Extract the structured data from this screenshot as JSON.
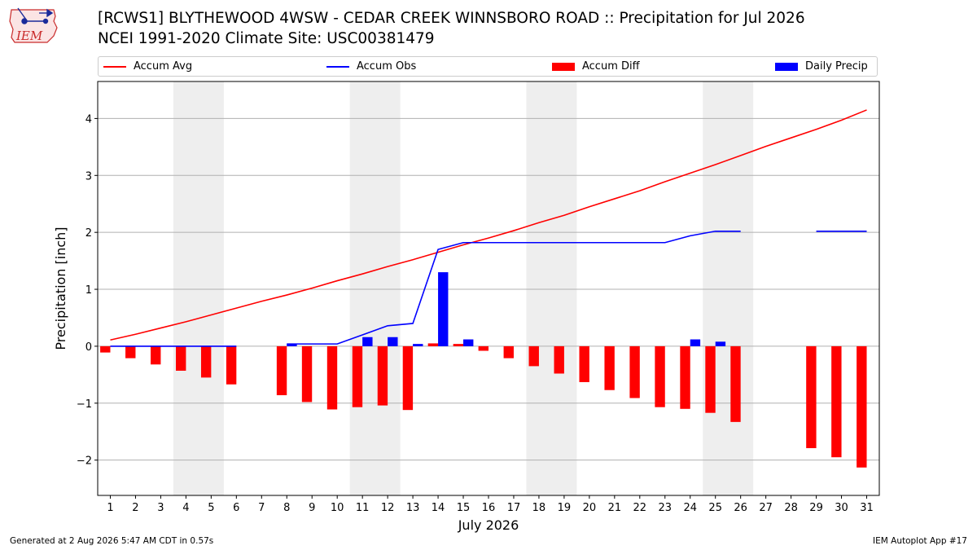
{
  "header": {
    "title_line1": "[RCWS1] BLYTHEWOOD 4WSW - CEDAR CREEK WINNSBORO ROAD :: Precipitation for Jul 2026",
    "title_line2": "NCEI 1991-2020 Climate Site: USC00381479",
    "logo_text": "IEM"
  },
  "footer": {
    "generated": "Generated at 2 Aug 2026 5:47 AM CDT in 0.57s",
    "app": "IEM Autoplot App #17"
  },
  "colors": {
    "avg": "#ff0000",
    "obs": "#0000ff",
    "diff": "#ff0000",
    "daily": "#0000ff",
    "weekend": "#eeeeee",
    "grid": "#b0b0b0"
  },
  "chart_data": {
    "type": "bar",
    "xlabel": "July 2026",
    "ylabel": "Precipitation [inch]",
    "xlim": [
      0.5,
      31.5
    ],
    "ylim": [
      -2.62,
      4.65
    ],
    "yticks": [
      -2,
      -1,
      0,
      1,
      2,
      3,
      4
    ],
    "ytick_labels": [
      "−2",
      "−1",
      "0",
      "1",
      "2",
      "3",
      "4"
    ],
    "grid": "horizontal",
    "legend_placement": "top",
    "days": [
      1,
      2,
      3,
      4,
      5,
      6,
      7,
      8,
      9,
      10,
      11,
      12,
      13,
      14,
      15,
      16,
      17,
      18,
      19,
      20,
      21,
      22,
      23,
      24,
      25,
      26,
      27,
      28,
      29,
      30,
      31
    ],
    "weekend_spans": [
      [
        3.5,
        5.5
      ],
      [
        10.5,
        12.5
      ],
      [
        17.5,
        19.5
      ],
      [
        24.5,
        26.5
      ]
    ],
    "series": [
      {
        "name": "Accum Avg",
        "kind": "line",
        "values": [
          0.11,
          0.21,
          0.32,
          0.43,
          0.55,
          0.67,
          0.79,
          0.9,
          1.02,
          1.15,
          1.27,
          1.4,
          1.52,
          1.65,
          1.78,
          1.9,
          2.03,
          2.17,
          2.3,
          2.45,
          2.59,
          2.73,
          2.89,
          3.04,
          3.19,
          3.35,
          3.51,
          3.66,
          3.81,
          3.97,
          4.15
        ]
      },
      {
        "name": "Accum Obs",
        "kind": "line",
        "values": [
          0.0,
          0.0,
          0.0,
          0.0,
          0.0,
          0.0,
          null,
          0.04,
          0.04,
          0.04,
          0.2,
          0.36,
          0.4,
          1.7,
          1.82,
          1.82,
          1.82,
          1.82,
          1.82,
          1.82,
          1.82,
          1.82,
          1.82,
          1.94,
          2.02,
          2.02,
          null,
          null,
          2.02,
          2.02,
          2.02
        ]
      },
      {
        "name": "Accum Diff",
        "kind": "bar",
        "values": [
          -0.11,
          -0.21,
          -0.32,
          -0.43,
          -0.55,
          -0.67,
          null,
          -0.86,
          -0.98,
          -1.11,
          -1.07,
          -1.04,
          -1.12,
          0.05,
          0.04,
          -0.08,
          -0.21,
          -0.35,
          -0.48,
          -0.63,
          -0.77,
          -0.91,
          -1.07,
          -1.1,
          -1.17,
          -1.33,
          null,
          null,
          -1.79,
          -1.95,
          -2.13
        ]
      },
      {
        "name": "Daily Precip",
        "kind": "bar",
        "values": [
          0,
          0,
          0,
          0,
          0,
          0,
          null,
          0.04,
          0,
          0,
          0.16,
          0.16,
          0.04,
          1.3,
          0.12,
          0,
          0,
          0,
          0,
          0,
          0,
          0,
          0,
          0.12,
          0.08,
          0,
          null,
          null,
          0,
          0,
          0
        ]
      }
    ]
  }
}
